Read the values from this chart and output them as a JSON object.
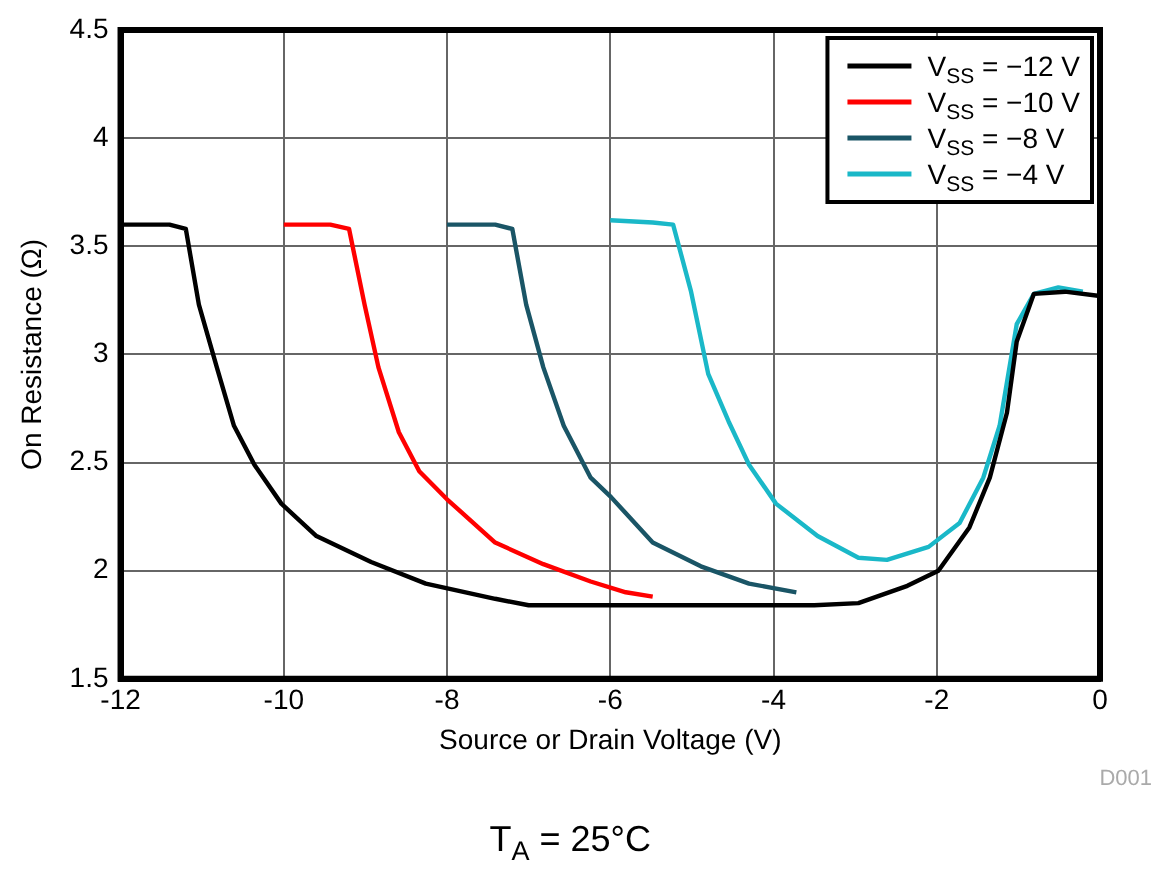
{
  "chart_data": {
    "type": "line",
    "xlabel": "Source or Drain Voltage (V)",
    "ylabel": "On Resistance (Ω)",
    "xlim": [
      -12,
      0
    ],
    "xticks": [
      -12,
      -10,
      -8,
      -6,
      -4,
      -2,
      0
    ],
    "ylim": [
      1.5,
      4.5
    ],
    "yticks": [
      1.5,
      2,
      2.5,
      3,
      3.5,
      4,
      4.5
    ],
    "grid": true,
    "legend": "top right",
    "marker": "none",
    "line_style": "solid",
    "annotations": [
      "D001",
      "T$_{A}$ = 25°C"
    ],
    "series": [
      {
        "name": "V$_{SS}$ = −12 V",
        "color": "#000000",
        "x": [
          -12,
          -11.4,
          -11.2,
          -11.04,
          -10.82,
          -10.61,
          -10.36,
          -10.03,
          -9.6,
          -8.93,
          -8.26,
          -7.41,
          -7.0,
          -5,
          -3.5,
          -2.96,
          -2.36,
          -1.98,
          -1.6,
          -1.35,
          -1.14,
          -1.02,
          -0.81,
          -0.43,
          0
        ],
        "values": [
          3.6,
          3.6,
          3.58,
          3.23,
          2.94,
          2.67,
          2.49,
          2.31,
          2.16,
          2.04,
          1.94,
          1.87,
          1.84,
          1.84,
          1.84,
          1.85,
          1.93,
          2.0,
          2.2,
          2.43,
          2.73,
          3.06,
          3.28,
          3.29,
          3.27
        ]
      },
      {
        "name": "V$_{SS}$ = −10 V",
        "color": "#ff0000",
        "x": [
          -10,
          -9.43,
          -9.2,
          -9.01,
          -8.84,
          -8.59,
          -8.34,
          -8.0,
          -7.41,
          -6.82,
          -6.24,
          -5.81,
          -5.48
        ],
        "values": [
          3.6,
          3.6,
          3.58,
          3.23,
          2.94,
          2.64,
          2.46,
          2.33,
          2.13,
          2.03,
          1.95,
          1.9,
          1.88
        ]
      },
      {
        "name": "V$_{SS}$ = −8 V",
        "color": "#1a5566",
        "x": [
          -8,
          -7.41,
          -7.2,
          -7.03,
          -6.82,
          -6.57,
          -6.24,
          -5.99,
          -5.48,
          -4.89,
          -4.3,
          -3.72
        ],
        "values": [
          3.6,
          3.6,
          3.58,
          3.23,
          2.94,
          2.67,
          2.43,
          2.34,
          2.13,
          2.02,
          1.94,
          1.9
        ]
      },
      {
        "name": "V$_{SS}$ = −4 V",
        "color": "#1ab8c8",
        "x": [
          -6,
          -5.48,
          -5.23,
          -5.01,
          -4.8,
          -4.55,
          -4.3,
          -3.97,
          -3.46,
          -2.96,
          -2.61,
          -2.1,
          -1.72,
          -1.43,
          -1.23,
          -1.02,
          -0.81,
          -0.51,
          -0.21
        ],
        "values": [
          3.62,
          3.61,
          3.6,
          3.29,
          2.91,
          2.69,
          2.49,
          2.31,
          2.16,
          2.06,
          2.05,
          2.11,
          2.22,
          2.43,
          2.67,
          3.14,
          3.28,
          3.31,
          3.29
        ]
      }
    ]
  }
}
